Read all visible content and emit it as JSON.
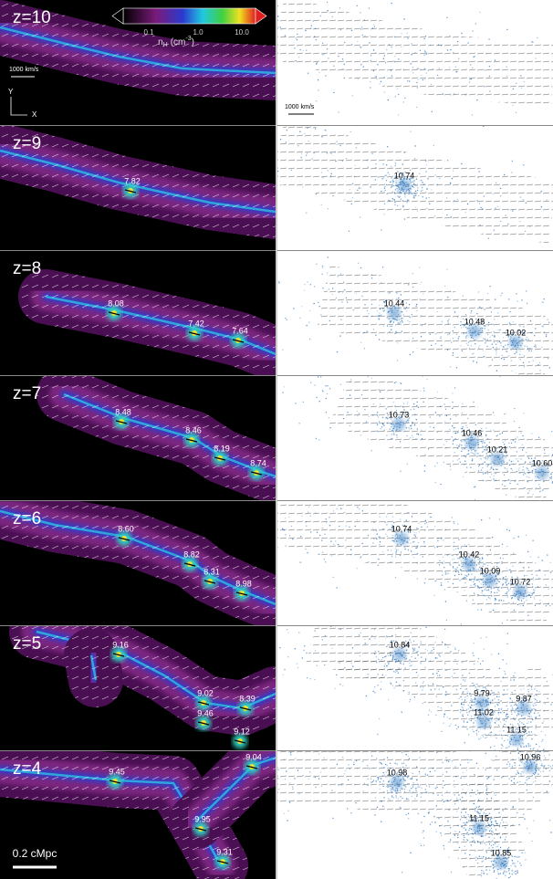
{
  "colorbar": {
    "ticks": [
      "0.1",
      "1.0",
      "10.0"
    ],
    "label": {
      "symbol": "n",
      "sub": "H",
      "open": "(cm",
      "sup": "-3",
      "close": ")"
    }
  },
  "axes": {
    "y": "Y",
    "x": "X"
  },
  "scale_labels": {
    "left": "1000 km/s",
    "right": "1000 km/s",
    "length": "0.2 cMpc"
  },
  "panels": [
    {
      "z_label": "z=10",
      "left_labels": [],
      "right_labels": []
    },
    {
      "z_label": "z=9",
      "left_labels": [
        "7.82"
      ],
      "right_labels": [
        "10.74"
      ]
    },
    {
      "z_label": "z=8",
      "left_labels": [
        "8.08",
        "7.42",
        "7.64"
      ],
      "right_labels": [
        "10.44",
        "10.48",
        "10.02"
      ]
    },
    {
      "z_label": "z=7",
      "left_labels": [
        "8.48",
        "8.46",
        "8.19",
        "8.74"
      ],
      "right_labels": [
        "10.73",
        "10.46",
        "10.21",
        "10.60"
      ]
    },
    {
      "z_label": "z=6",
      "left_labels": [
        "8.60",
        "8.82",
        "8.31",
        "8.98"
      ],
      "right_labels": [
        "10.74",
        "10.42",
        "10.09",
        "10.72"
      ]
    },
    {
      "z_label": "z=5",
      "left_labels": [
        "9.16",
        "9.02",
        "8.39",
        "9.46",
        "9.12"
      ],
      "right_labels": [
        "10.84",
        "9.79",
        "9.87",
        "11.02",
        "11.15"
      ]
    },
    {
      "z_label": "z=4",
      "left_labels": [
        "9.45",
        "9.04",
        "9.95",
        "9.31"
      ],
      "right_labels": [
        "10.98",
        "10.96",
        "11.15",
        "10.85"
      ]
    }
  ]
}
